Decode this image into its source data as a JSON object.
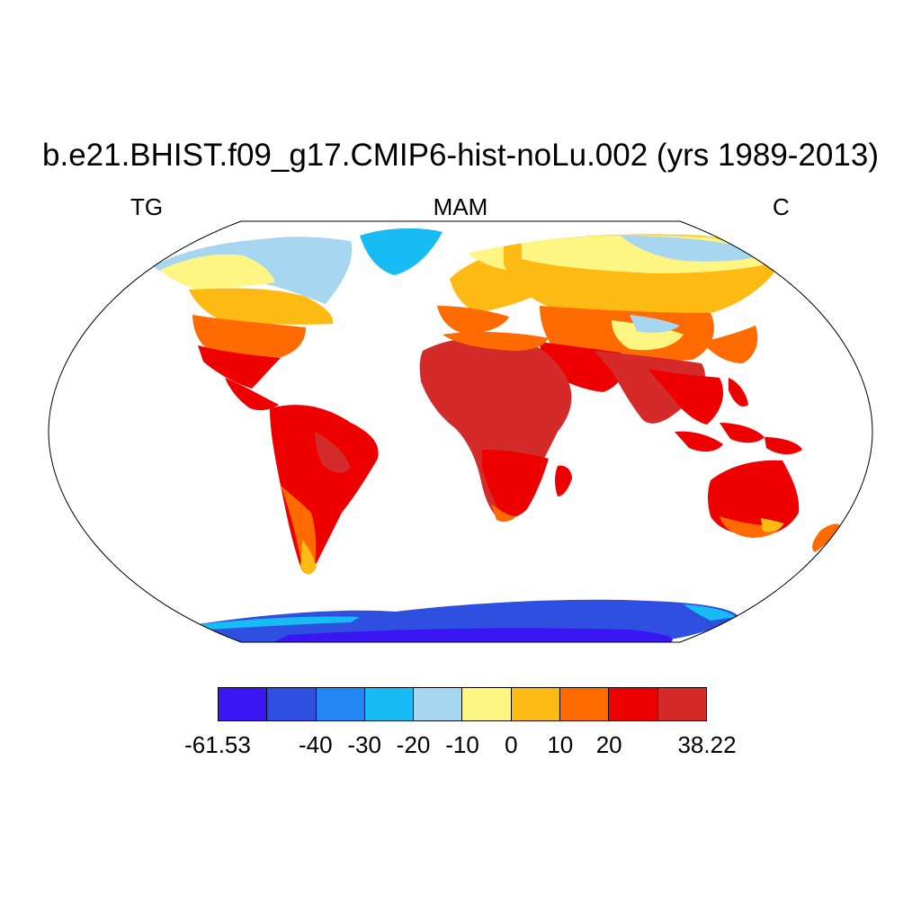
{
  "title": "b.e21.BHIST.f09_g17.CMIP6-hist-noLu.002 (yrs 1989-2013)",
  "left_label": "TG",
  "center_label": "MAM",
  "right_label": "C",
  "map": {
    "projection": "Robinson",
    "ocean_color": "#ffffff",
    "coastline_color": "#000000"
  },
  "colorbar": {
    "colors": [
      "#3b16f5",
      "#2e4fe0",
      "#2185f2",
      "#17bcf5",
      "#a6d6f0",
      "#fff582",
      "#fdba12",
      "#ff6b00",
      "#ee0000",
      "#d42a2a"
    ],
    "tick_labels": [
      "-61.53",
      "-40",
      "-30",
      "-20",
      "-10",
      "0",
      "10",
      "20",
      "38.22"
    ],
    "tick_positions": [
      0,
      2,
      3,
      4,
      5,
      6,
      7,
      8,
      10
    ]
  }
}
